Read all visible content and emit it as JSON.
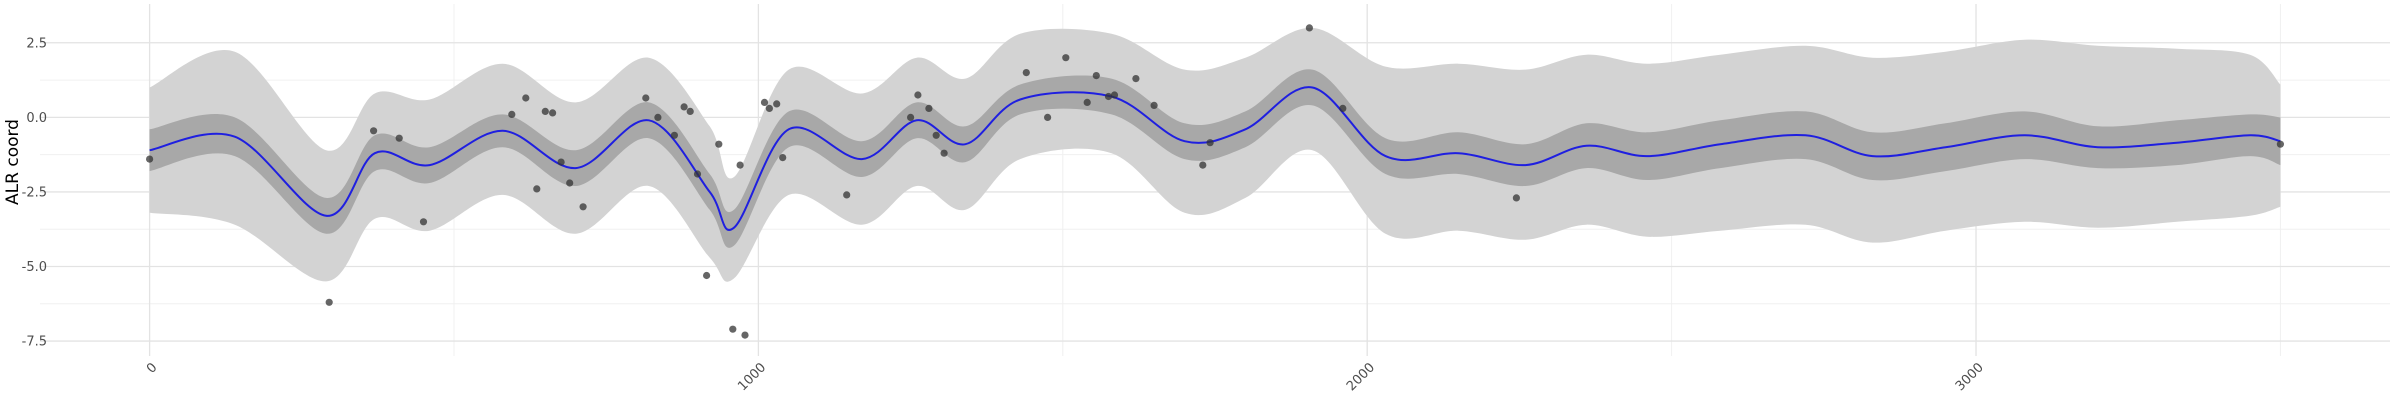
{
  "chart_data": {
    "type": "line",
    "title": "",
    "xlabel": "",
    "ylabel": "ALR coord",
    "xlim": [
      -180,
      3680
    ],
    "ylim": [
      -8.0,
      3.8
    ],
    "x_ticks": [
      0,
      1000,
      2000,
      3000
    ],
    "x_tick_labels": [
      "0",
      "1000",
      "2000",
      "3000"
    ],
    "y_ticks": [
      -7.5,
      -5.0,
      -2.5,
      0.0,
      2.5
    ],
    "y_tick_labels": [
      "-7.5",
      "-5.0",
      "-2.5",
      "0.0",
      "2.5"
    ],
    "grid": true,
    "legend": "none",
    "colors": {
      "line": "#1f1fe0",
      "inner_band": "#a8a8a8",
      "outer_band": "#d3d3d3",
      "points": "#333333",
      "grid_major": "#e3e3e3",
      "grid_minor": "#f0f0f0"
    },
    "mean_line": {
      "x": [
        0,
        140,
        290,
        370,
        460,
        580,
        700,
        820,
        920,
        960,
        1050,
        1170,
        1260,
        1340,
        1430,
        1580,
        1700,
        1800,
        1910,
        2030,
        2150,
        2260,
        2360,
        2460,
        2580,
        2720,
        2830,
        2950,
        3080,
        3200,
        3330,
        3450,
        3500
      ],
      "y": [
        -1.1,
        -0.65,
        -3.3,
        -1.2,
        -1.6,
        -0.45,
        -1.7,
        -0.1,
        -2.5,
        -3.7,
        -0.4,
        -1.4,
        -0.1,
        -0.9,
        0.6,
        0.7,
        -0.8,
        -0.4,
        1.0,
        -1.3,
        -1.2,
        -1.6,
        -0.95,
        -1.3,
        -0.9,
        -0.6,
        -1.3,
        -1.0,
        -0.6,
        -1.0,
        -0.85,
        -0.6,
        -0.8
      ]
    },
    "inner_band": {
      "x": [
        0,
        140,
        290,
        370,
        460,
        580,
        700,
        820,
        920,
        960,
        1050,
        1170,
        1260,
        1340,
        1430,
        1580,
        1700,
        1800,
        1910,
        2030,
        2150,
        2260,
        2360,
        2460,
        2580,
        2720,
        2830,
        2950,
        3080,
        3200,
        3330,
        3450,
        3500
      ],
      "lower": [
        -1.8,
        -1.3,
        -3.9,
        -1.8,
        -2.2,
        -1.0,
        -2.3,
        -0.7,
        -3.1,
        -4.3,
        -1.0,
        -2.0,
        -0.7,
        -1.5,
        0.1,
        0.1,
        -1.4,
        -1.0,
        0.4,
        -1.9,
        -1.9,
        -2.3,
        -1.7,
        -2.1,
        -1.7,
        -1.4,
        -2.1,
        -1.8,
        -1.4,
        -1.7,
        -1.6,
        -1.3,
        -1.6
      ],
      "upper": [
        -0.4,
        0.0,
        -2.7,
        -0.6,
        -1.0,
        0.1,
        -1.1,
        0.5,
        -1.9,
        -3.1,
        0.2,
        -0.8,
        0.5,
        -0.3,
        1.1,
        1.3,
        -0.2,
        0.2,
        1.6,
        -0.7,
        -0.5,
        -0.9,
        -0.2,
        -0.5,
        -0.1,
        0.2,
        -0.5,
        -0.2,
        0.2,
        -0.3,
        -0.1,
        0.1,
        0.0
      ]
    },
    "outer_band": {
      "x": [
        0,
        140,
        290,
        370,
        460,
        580,
        700,
        820,
        920,
        960,
        1050,
        1170,
        1260,
        1340,
        1430,
        1580,
        1700,
        1800,
        1910,
        2030,
        2150,
        2260,
        2360,
        2460,
        2580,
        2720,
        2830,
        2950,
        3080,
        3200,
        3330,
        3450,
        3500
      ],
      "lower": [
        -3.2,
        -3.6,
        -5.5,
        -3.4,
        -3.8,
        -2.6,
        -3.9,
        -2.3,
        -4.7,
        -5.4,
        -2.6,
        -3.6,
        -2.3,
        -3.1,
        -1.4,
        -1.2,
        -3.2,
        -2.7,
        -1.1,
        -3.9,
        -3.8,
        -4.1,
        -3.6,
        -4.0,
        -3.8,
        -3.6,
        -4.2,
        -3.8,
        -3.5,
        -3.7,
        -3.5,
        -3.3,
        -3.0
      ],
      "upper": [
        1.0,
        2.2,
        -1.1,
        0.8,
        0.6,
        1.8,
        0.5,
        2.0,
        -0.3,
        -2.0,
        1.6,
        0.8,
        2.0,
        1.3,
        2.8,
        2.8,
        1.6,
        2.0,
        3.0,
        1.7,
        1.8,
        1.6,
        2.1,
        1.8,
        2.1,
        2.4,
        2.0,
        2.2,
        2.6,
        2.4,
        2.3,
        2.1,
        1.1
      ]
    },
    "points": {
      "x": [
        0,
        295,
        368,
        410,
        450,
        595,
        618,
        636,
        650,
        662,
        676,
        690,
        712,
        815,
        835,
        862,
        878,
        888,
        900,
        915,
        935,
        958,
        970,
        978,
        1010,
        1018,
        1030,
        1040,
        1145,
        1250,
        1262,
        1280,
        1292,
        1305,
        1440,
        1475,
        1505,
        1540,
        1555,
        1575,
        1585,
        1620,
        1650,
        1730,
        1742,
        1905,
        1960,
        2245,
        3500
      ],
      "y": [
        -1.4,
        -6.2,
        -0.45,
        -0.7,
        -3.5,
        0.1,
        0.65,
        -2.4,
        0.2,
        0.15,
        -1.5,
        -2.2,
        -3.0,
        0.65,
        0.0,
        -0.6,
        0.35,
        0.2,
        -1.9,
        -5.3,
        -0.9,
        -7.1,
        -1.6,
        -7.3,
        0.5,
        0.3,
        0.45,
        -1.35,
        -2.6,
        0.0,
        0.75,
        0.3,
        -0.6,
        -1.2,
        1.5,
        0.0,
        2.0,
        0.5,
        1.4,
        0.7,
        0.75,
        1.3,
        0.4,
        -1.6,
        -0.85,
        3.0,
        0.3,
        -2.7,
        -0.9
      ]
    }
  }
}
